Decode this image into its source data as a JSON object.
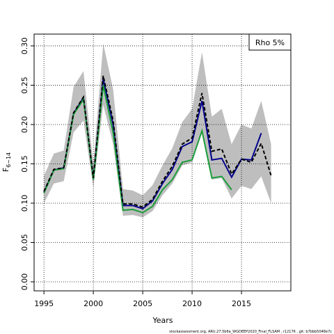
{
  "chart_data": {
    "type": "line",
    "legend_text": "Rho 5%",
    "xlabel": "Years",
    "ylabel": {
      "main": "F",
      "sub": "6−14"
    },
    "footer": "stockassessment.org, ARU.27.5b6a_WGDEEP2020_Final_FLSAM , r12176 , git: b7bbb5048e7c",
    "x": [
      1995,
      1996,
      1997,
      1998,
      1999,
      2000,
      2001,
      2002,
      2003,
      2004,
      2005,
      2006,
      2007,
      2008,
      2009,
      2010,
      2011,
      2012,
      2013,
      2014,
      2015,
      2016,
      2017,
      2018
    ],
    "xlim": [
      1994,
      2020
    ],
    "xticks": [
      1995,
      2000,
      2005,
      2010,
      2015
    ],
    "ylim": [
      -0.0115,
      0.315
    ],
    "yticks": [
      {
        "value": 0,
        "label": "0.00"
      },
      {
        "value": 0.05,
        "label": "0.05"
      },
      {
        "value": 0.1,
        "label": "0.10"
      },
      {
        "value": 0.15,
        "label": "0.15"
      },
      {
        "value": 0.2,
        "label": "0.20"
      },
      {
        "value": 0.25,
        "label": "0.25"
      },
      {
        "value": 0.3,
        "label": "0.30"
      }
    ],
    "grid": true,
    "band": {
      "color": "#bebebe",
      "upper": [
        0.135,
        0.163,
        0.167,
        0.248,
        0.268,
        0.15,
        0.303,
        0.245,
        0.118,
        0.116,
        0.11,
        0.123,
        0.148,
        0.17,
        0.203,
        0.22,
        0.292,
        0.21,
        0.22,
        0.175,
        0.2,
        0.195,
        0.23,
        0.175
      ],
      "lower": [
        0.1,
        0.125,
        0.128,
        0.19,
        0.205,
        0.12,
        0.225,
        0.175,
        0.084,
        0.085,
        0.082,
        0.09,
        0.11,
        0.125,
        0.148,
        0.152,
        0.195,
        0.13,
        0.132,
        0.106,
        0.122,
        0.118,
        0.134,
        0.1
      ]
    },
    "series": [
      {
        "color": "#00008b",
        "values": [
          0.114,
          0.142,
          0.145,
          0.214,
          0.234,
          0.131,
          0.258,
          0.2,
          0.097,
          0.097,
          0.093,
          0.103,
          0.125,
          0.143,
          0.172,
          0.178,
          0.23,
          0.155,
          0.157,
          0.133,
          0.156,
          0.155,
          0.189,
          null
        ]
      },
      {
        "color": "#1a9e3a",
        "values": [
          0.113,
          0.142,
          0.144,
          0.213,
          0.232,
          0.13,
          0.25,
          0.19,
          0.091,
          0.092,
          0.088,
          0.096,
          0.117,
          0.13,
          0.152,
          0.155,
          0.192,
          0.132,
          0.134,
          0.117,
          null,
          null,
          null,
          null
        ]
      },
      {
        "color": "#000000",
        "dashed": true,
        "values": [
          0.115,
          0.143,
          0.145,
          0.215,
          0.235,
          0.132,
          0.262,
          0.205,
          0.099,
          0.099,
          0.095,
          0.105,
          0.128,
          0.147,
          0.175,
          0.183,
          0.24,
          0.166,
          0.169,
          0.137,
          0.156,
          0.152,
          0.176,
          0.135
        ]
      }
    ]
  }
}
